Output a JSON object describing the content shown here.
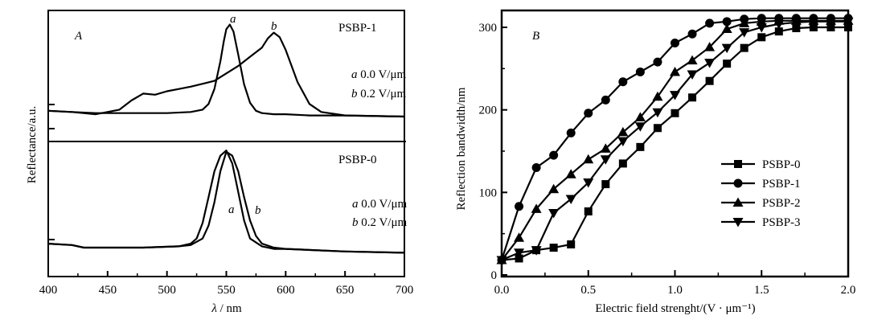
{
  "chart_data": [
    {
      "panel": "A",
      "type": "line",
      "panel_label": "A",
      "xlabel_symbol": "λ",
      "xlabel_unit": " / nm",
      "ylabel": "Reflectance/a.u.",
      "xlim": [
        400,
        700
      ],
      "x_ticks": [
        "400",
        "450",
        "500",
        "550",
        "600",
        "650",
        "700"
      ],
      "x_tick_values": [
        400,
        450,
        500,
        550,
        600,
        650,
        700
      ],
      "subplots": [
        {
          "name": "PSBP-1",
          "legend": [
            {
              "key": "a",
              "text": " 0.0 V/μm"
            },
            {
              "key": "b",
              "text": " 0.2 V/μm"
            }
          ],
          "ylim": [
            0,
            1
          ],
          "series": [
            {
              "name": "a",
              "label": "a",
              "x": [
                400,
                420,
                440,
                460,
                480,
                500,
                520,
                530,
                535,
                540,
                545,
                548,
                550,
                553,
                556,
                560,
                565,
                570,
                575,
                580,
                590,
                600,
                620,
                650,
                700
              ],
              "y": [
                0.19,
                0.18,
                0.17,
                0.17,
                0.17,
                0.17,
                0.18,
                0.2,
                0.25,
                0.38,
                0.62,
                0.8,
                0.9,
                0.94,
                0.88,
                0.68,
                0.42,
                0.26,
                0.19,
                0.17,
                0.16,
                0.16,
                0.15,
                0.15,
                0.14
              ]
            },
            {
              "name": "b",
              "label": "b",
              "x": [
                400,
                420,
                440,
                460,
                470,
                480,
                490,
                500,
                510,
                520,
                540,
                560,
                570,
                580,
                585,
                590,
                595,
                600,
                610,
                620,
                630,
                650,
                700
              ],
              "y": [
                0.19,
                0.18,
                0.16,
                0.2,
                0.28,
                0.34,
                0.33,
                0.36,
                0.38,
                0.4,
                0.45,
                0.58,
                0.66,
                0.74,
                0.82,
                0.87,
                0.83,
                0.72,
                0.44,
                0.25,
                0.18,
                0.15,
                0.14
              ]
            }
          ],
          "annotations": [
            "a",
            "b"
          ]
        },
        {
          "name": "PSBP-0",
          "legend": [
            {
              "key": "a",
              "text": " 0.0 V/μm"
            },
            {
              "key": "b",
              "text": " 0.2 V/μm"
            }
          ],
          "ylim": [
            0,
            1
          ],
          "series": [
            {
              "name": "a",
              "label": "a",
              "x": [
                400,
                420,
                430,
                450,
                480,
                510,
                520,
                525,
                530,
                535,
                540,
                545,
                550,
                555,
                560,
                565,
                570,
                580,
                590,
                600,
                650,
                700
              ],
              "y": [
                0.26,
                0.25,
                0.23,
                0.23,
                0.23,
                0.24,
                0.26,
                0.3,
                0.42,
                0.62,
                0.82,
                0.94,
                0.98,
                0.88,
                0.66,
                0.44,
                0.3,
                0.24,
                0.22,
                0.22,
                0.2,
                0.19
              ]
            },
            {
              "name": "b",
              "label": "b",
              "x": [
                400,
                420,
                430,
                450,
                480,
                510,
                520,
                530,
                535,
                540,
                545,
                550,
                555,
                560,
                565,
                570,
                575,
                580,
                590,
                600,
                650,
                700
              ],
              "y": [
                0.26,
                0.25,
                0.23,
                0.23,
                0.23,
                0.24,
                0.25,
                0.3,
                0.4,
                0.58,
                0.82,
                0.97,
                0.94,
                0.82,
                0.62,
                0.44,
                0.32,
                0.26,
                0.23,
                0.22,
                0.2,
                0.19
              ]
            }
          ],
          "annotations": [
            "a",
            "b"
          ]
        }
      ]
    },
    {
      "panel": "B",
      "type": "line",
      "panel_label": "B",
      "xlabel": "Electric field strenght/(V · μm⁻¹)",
      "ylabel": "Reflection bandwidth/nm",
      "xlim": [
        0,
        2.0
      ],
      "ylim": [
        0,
        320
      ],
      "x_ticks": [
        "0.0",
        "0.5",
        "1.0",
        "1.5",
        "2.0"
      ],
      "x_tick_values": [
        0,
        0.5,
        1.0,
        1.5,
        2.0
      ],
      "y_ticks": [
        "0",
        "100",
        "200",
        "300"
      ],
      "y_tick_values": [
        0,
        100,
        200,
        300
      ],
      "legend_position": "center-right",
      "x": [
        0.0,
        0.1,
        0.2,
        0.3,
        0.4,
        0.5,
        0.6,
        0.7,
        0.8,
        0.9,
        1.0,
        1.1,
        1.2,
        1.3,
        1.4,
        1.5,
        1.6,
        1.7,
        1.8,
        1.9,
        2.0
      ],
      "series": [
        {
          "name": "PSBP-0",
          "marker": "square",
          "values": [
            18,
            20,
            30,
            33,
            37,
            77,
            110,
            135,
            155,
            178,
            196,
            215,
            235,
            256,
            275,
            288,
            295,
            299,
            300,
            300,
            300
          ]
        },
        {
          "name": "PSBP-1",
          "marker": "circle",
          "values": [
            18,
            83,
            130,
            145,
            172,
            196,
            212,
            234,
            246,
            258,
            281,
            292,
            305,
            307,
            310,
            311,
            311,
            311,
            311,
            311,
            311
          ]
        },
        {
          "name": "PSBP-2",
          "marker": "triangle-up",
          "values": [
            18,
            45,
            80,
            104,
            122,
            140,
            153,
            173,
            191,
            216,
            246,
            260,
            276,
            298,
            305,
            307,
            308,
            308,
            308,
            308,
            308
          ]
        },
        {
          "name": "PSBP-3",
          "marker": "triangle-down",
          "values": [
            18,
            27,
            30,
            75,
            92,
            112,
            140,
            162,
            180,
            197,
            218,
            243,
            257,
            275,
            294,
            300,
            304,
            306,
            307,
            307,
            307
          ]
        }
      ]
    }
  ]
}
